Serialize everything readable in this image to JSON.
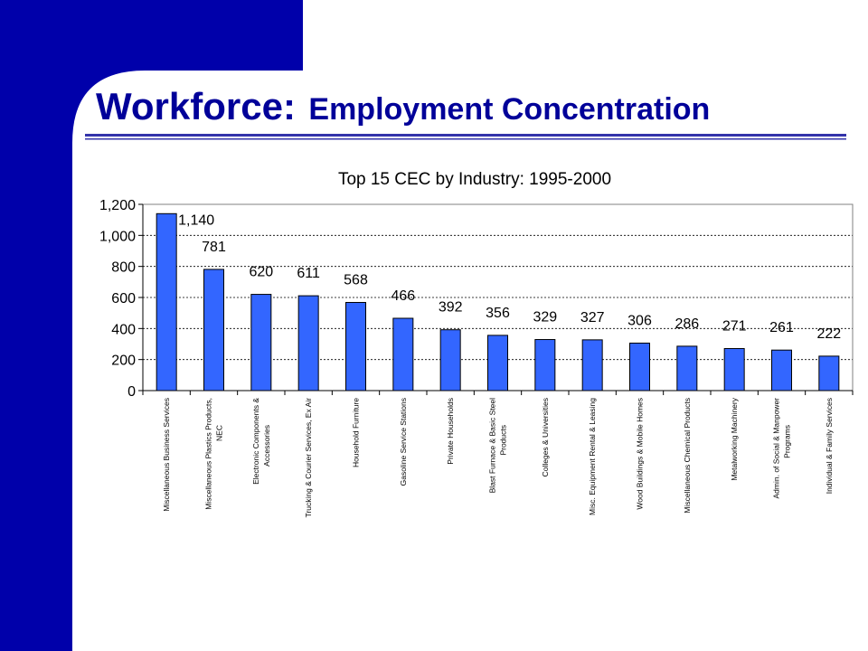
{
  "slide": {
    "title_prefix": "Workforce:",
    "title_suffix": "Employment Concentration",
    "colors": {
      "band": "#0000AA",
      "title": "#000099",
      "rule": "#3333AA"
    }
  },
  "chart_data": {
    "type": "bar",
    "title": "Top 15 CEC by Industry: 1995-2000",
    "xlabel": "",
    "ylabel": "",
    "ylim": [
      0,
      1200
    ],
    "yticks": [
      "0",
      "200",
      "400",
      "600",
      "800",
      "1,000",
      "1,200"
    ],
    "ytick_values": [
      0,
      200,
      400,
      600,
      800,
      1000,
      1200
    ],
    "grid": "dashed horizontal",
    "bar_color": "#3366FF",
    "categories": [
      [
        "Miscellaneous Business Services"
      ],
      [
        "Miscellaneous Plastics Products,",
        "NEC"
      ],
      [
        "Electronic Components &",
        "Accessories"
      ],
      [
        "Trucking & Courier Services, Ex Air"
      ],
      [
        "Household Furniture"
      ],
      [
        "Gasoline Service Stations"
      ],
      [
        "Private Households"
      ],
      [
        "Blast Furnace & Basic Steel",
        "Products"
      ],
      [
        "Colleges & Universities"
      ],
      [
        "Misc. Equipment Rental & Leasing"
      ],
      [
        "Wood Buildings & Mobile Homes"
      ],
      [
        "Miscellaneous Chemical Products"
      ],
      [
        "Metalworking Machinery"
      ],
      [
        "Admin. of Social & Manpower",
        "Programs"
      ],
      [
        "Individual & Family Services"
      ]
    ],
    "values": [
      1140,
      781,
      620,
      611,
      568,
      466,
      392,
      356,
      329,
      327,
      306,
      286,
      271,
      261,
      222
    ],
    "value_labels": [
      "1,140",
      "781",
      "620",
      "611",
      "568",
      "466",
      "392",
      "356",
      "329",
      "327",
      "306",
      "286",
      "271",
      "261",
      "222"
    ]
  }
}
